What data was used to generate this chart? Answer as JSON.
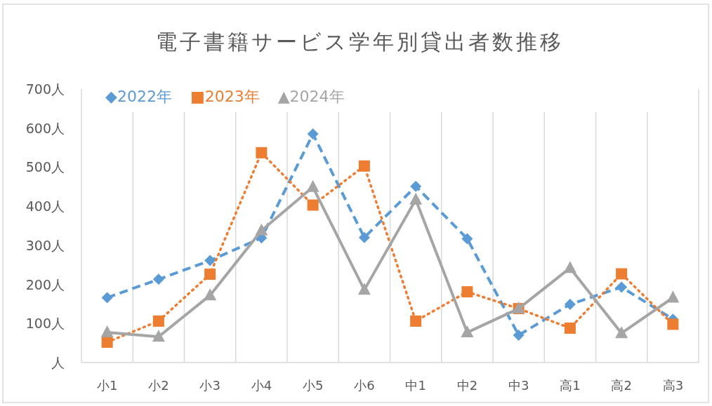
{
  "chart_data": {
    "type": "line",
    "title": "電子書籍サービス学年別貸出者数推移",
    "categories": [
      "小1",
      "小2",
      "小3",
      "小4",
      "小5",
      "小6",
      "中1",
      "中2",
      "中3",
      "高1",
      "高2",
      "高3"
    ],
    "series": [
      {
        "name": "◆2022年",
        "color": "#5b9bd5",
        "marker": "diamond",
        "line_style": "dashed",
        "values": [
          166,
          213,
          261,
          319,
          585,
          320,
          451,
          317,
          70,
          149,
          193,
          111
        ]
      },
      {
        "name": "■2023年",
        "color": "#ed7d31",
        "marker": "square",
        "line_style": "dotted",
        "values": [
          52,
          106,
          226,
          537,
          403,
          503,
          106,
          181,
          138,
          88,
          227,
          98
        ]
      },
      {
        "name": "▲2024年",
        "color": "#a5a5a5",
        "marker": "triangle",
        "line_style": "solid",
        "values": [
          77,
          66,
          172,
          338,
          449,
          186,
          417,
          77,
          138,
          242,
          75,
          166
        ]
      }
    ],
    "ylim": [
      0,
      700
    ],
    "yticks": [
      {
        "value": 0,
        "label": "人"
      },
      {
        "value": 100,
        "label": "100人"
      },
      {
        "value": 200,
        "label": "200人"
      },
      {
        "value": 300,
        "label": "300人"
      },
      {
        "value": 400,
        "label": "400人"
      },
      {
        "value": 500,
        "label": "500人"
      },
      {
        "value": 600,
        "label": "600人"
      },
      {
        "value": 700,
        "label": "700人"
      }
    ],
    "grid": "x",
    "legend": "top left"
  }
}
